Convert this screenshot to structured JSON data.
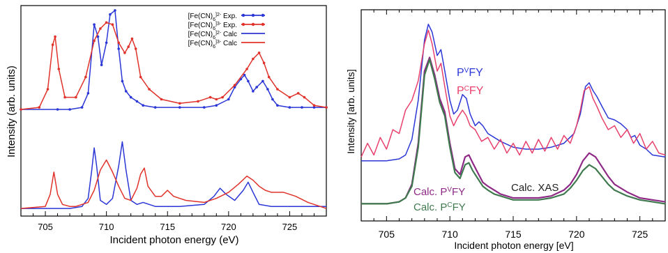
{
  "colors": {
    "blue": "#2a36d6",
    "red": "#e0322a",
    "magenta": "#e8406c",
    "purple": "#8e2a86",
    "green": "#3f7a4f",
    "dark": "#222222"
  },
  "chart_data": [
    {
      "type": "line",
      "title": "",
      "xlabel": "Incident photon energy (eV)",
      "ylabel": "Intensity (arb. units)",
      "xlim": [
        703,
        728
      ],
      "ylim": [
        0,
        1
      ],
      "xticks": [
        705,
        710,
        715,
        720,
        725
      ],
      "xtick_labels": [
        "705",
        "710",
        "715",
        "720",
        "725"
      ],
      "grid": false,
      "legend_position": "top-right",
      "legend": [
        {
          "base": "[Fe(CN)",
          "sub": "6",
          "sup": "]2-",
          "suffix": " Exp.",
          "color": "blue",
          "markers": true
        },
        {
          "base": "[Fe(CN)",
          "sub": "6",
          "sup": "]3-",
          "suffix": " Exp.",
          "color": "red",
          "markers": true
        },
        {
          "base": "[Fe(CN)",
          "sub": "6",
          "sup": "]2-",
          "suffix": " Calc",
          "color": "blue",
          "markers": false
        },
        {
          "base": "[Fe(CN)",
          "sub": "6",
          "sup": "]3-",
          "suffix": " Calc",
          "color": "red",
          "markers": false
        }
      ],
      "series": [
        {
          "name": "[Fe(CN)6]2- Exp.",
          "color": "blue",
          "markers": true,
          "x": [
            703,
            706,
            707,
            708,
            708.5,
            709,
            709.3,
            709.6,
            710,
            710.3,
            710.7,
            711,
            711.3,
            711.6,
            712,
            712.5,
            713,
            714,
            716,
            718,
            719,
            720,
            720.5,
            721,
            721.3,
            721.6,
            722,
            722.3,
            722.8,
            723.2,
            723.6,
            724,
            725,
            726,
            727,
            728
          ],
          "y": [
            0.5,
            0.5,
            0.5,
            0.51,
            0.58,
            0.92,
            0.86,
            0.72,
            0.83,
            0.97,
            0.99,
            0.8,
            0.64,
            0.59,
            0.56,
            0.54,
            0.52,
            0.51,
            0.51,
            0.51,
            0.52,
            0.55,
            0.61,
            0.65,
            0.67,
            0.64,
            0.59,
            0.61,
            0.64,
            0.6,
            0.55,
            0.52,
            0.51,
            0.51,
            0.51,
            0.51
          ]
        },
        {
          "name": "[Fe(CN)6]3- Exp.",
          "color": "red",
          "markers": true,
          "x": [
            703,
            704.5,
            705.2,
            705.6,
            705.8,
            706.1,
            706.6,
            707.5,
            708.3,
            709,
            709.5,
            710,
            710.5,
            711,
            711.5,
            711.8,
            712.1,
            712.4,
            712.8,
            713.5,
            714.5,
            716,
            717.5,
            718.5,
            719,
            719.5,
            720.5,
            721.5,
            722,
            722.5,
            722.9,
            723.3,
            724,
            725,
            725.7,
            726.2,
            727,
            728
          ],
          "y": [
            0.5,
            0.51,
            0.6,
            0.82,
            0.86,
            0.7,
            0.56,
            0.56,
            0.66,
            0.84,
            0.9,
            0.93,
            0.92,
            0.83,
            0.78,
            0.81,
            0.85,
            0.8,
            0.66,
            0.6,
            0.55,
            0.53,
            0.54,
            0.56,
            0.55,
            0.56,
            0.62,
            0.7,
            0.75,
            0.78,
            0.73,
            0.66,
            0.6,
            0.56,
            0.58,
            0.56,
            0.52,
            0.51
          ]
        },
        {
          "name": "[Fe(CN)6]2- Calc",
          "color": "blue",
          "markers": false,
          "x": [
            703,
            707,
            708,
            708.5,
            708.8,
            709,
            709.2,
            709.5,
            710,
            710.5,
            711,
            711.3,
            711.6,
            712,
            712.5,
            713,
            713.5,
            714,
            716,
            718,
            718.8,
            719.3,
            719.8,
            720.5,
            721.2,
            721.6,
            722,
            722.5,
            723.5,
            725,
            726,
            728
          ],
          "y": [
            0.01,
            0.01,
            0.02,
            0.06,
            0.2,
            0.31,
            0.22,
            0.05,
            0.03,
            0.06,
            0.22,
            0.34,
            0.2,
            0.05,
            0.03,
            0.04,
            0.03,
            0.02,
            0.02,
            0.03,
            0.07,
            0.11,
            0.08,
            0.05,
            0.1,
            0.14,
            0.09,
            0.03,
            0.02,
            0.02,
            0.02,
            0.02
          ]
        },
        {
          "name": "[Fe(CN)6]3- Calc",
          "color": "red",
          "markers": false,
          "x": [
            703,
            705,
            705.4,
            705.7,
            706,
            706.4,
            707,
            707.5,
            708.5,
            709,
            709.5,
            710,
            710.5,
            711,
            711.5,
            712,
            712.5,
            712.8,
            713.1,
            713.4,
            714,
            714.5,
            715,
            715.5,
            716.5,
            718,
            719,
            720,
            720.8,
            721.5,
            722,
            722.5,
            723,
            723.5,
            724.5,
            725.5,
            726.5,
            728
          ],
          "y": [
            0.01,
            0.02,
            0.08,
            0.19,
            0.08,
            0.03,
            0.02,
            0.02,
            0.04,
            0.1,
            0.2,
            0.25,
            0.19,
            0.12,
            0.06,
            0.05,
            0.11,
            0.18,
            0.21,
            0.12,
            0.07,
            0.07,
            0.1,
            0.07,
            0.05,
            0.04,
            0.06,
            0.09,
            0.13,
            0.17,
            0.15,
            0.12,
            0.1,
            0.09,
            0.09,
            0.07,
            0.04,
            0.01
          ]
        }
      ]
    },
    {
      "type": "line",
      "title": "",
      "xlabel": "Incident photon energy [eV]",
      "ylabel": "Intensity [arb. units]",
      "xlim": [
        703,
        727
      ],
      "ylim": [
        0,
        1
      ],
      "xticks": [
        705,
        710,
        715,
        720,
        725
      ],
      "xtick_labels": [
        "705",
        "710",
        "715",
        "720",
        "725"
      ],
      "grid": false,
      "annotations": [
        {
          "prefix": "P",
          "sup": "V",
          "suffix": "FY",
          "color": "blue"
        },
        {
          "prefix": "P",
          "sup": "C",
          "suffix": "FY",
          "color": "magenta"
        },
        {
          "prefix": "Calc. P",
          "sup": "V",
          "suffix": "FY",
          "color": "purple"
        },
        {
          "prefix": "Calc. P",
          "sup": "C",
          "suffix": "FY",
          "color": "green"
        },
        {
          "prefix": "Calc. XAS",
          "sup": "",
          "suffix": "",
          "color": "dark"
        }
      ],
      "series": [
        {
          "name": "PVFY",
          "color": "blue",
          "x": [
            703,
            704,
            705,
            706,
            706.5,
            707,
            707.5,
            708,
            708.3,
            708.6,
            709,
            709.3,
            709.6,
            710,
            710.3,
            710.6,
            711,
            711.3,
            711.6,
            712,
            712.3,
            712.6,
            713,
            714,
            715,
            716,
            717,
            718,
            719,
            719.8,
            720.3,
            720.7,
            721,
            721.3,
            721.6,
            722,
            722.5,
            723,
            723.5,
            724,
            724.3,
            724.6,
            725,
            725.5,
            726,
            727
          ],
          "y": [
            0.24,
            0.24,
            0.24,
            0.25,
            0.27,
            0.35,
            0.55,
            0.86,
            0.94,
            0.9,
            0.78,
            0.81,
            0.7,
            0.55,
            0.48,
            0.5,
            0.58,
            0.56,
            0.48,
            0.42,
            0.44,
            0.42,
            0.38,
            0.34,
            0.31,
            0.3,
            0.3,
            0.31,
            0.33,
            0.38,
            0.48,
            0.62,
            0.64,
            0.6,
            0.57,
            0.52,
            0.46,
            0.45,
            0.43,
            0.4,
            0.36,
            0.37,
            0.32,
            0.3,
            0.27,
            0.26
          ]
        },
        {
          "name": "PCFY",
          "color": "magenta",
          "x": [
            703,
            703.5,
            704,
            704.5,
            705,
            705.5,
            706,
            706.5,
            707,
            707.5,
            708,
            708.3,
            708.6,
            709,
            709.3,
            709.6,
            710,
            710.3,
            710.6,
            711,
            711.3,
            711.6,
            712,
            712.5,
            713,
            713.5,
            714,
            714.5,
            715,
            715.5,
            716,
            716.5,
            717,
            717.5,
            718,
            718.5,
            719,
            719.5,
            720,
            720.3,
            720.6,
            721,
            721.3,
            721.6,
            722,
            722.5,
            723,
            723.5,
            724,
            724.5,
            725,
            725.5,
            726,
            726.5,
            727
          ],
          "y": [
            0.26,
            0.33,
            0.27,
            0.36,
            0.3,
            0.4,
            0.38,
            0.5,
            0.55,
            0.65,
            0.84,
            0.91,
            0.84,
            0.7,
            0.74,
            0.62,
            0.47,
            0.42,
            0.46,
            0.5,
            0.47,
            0.42,
            0.4,
            0.34,
            0.36,
            0.3,
            0.35,
            0.28,
            0.33,
            0.27,
            0.34,
            0.28,
            0.35,
            0.29,
            0.36,
            0.3,
            0.37,
            0.33,
            0.42,
            0.5,
            0.6,
            0.62,
            0.56,
            0.52,
            0.46,
            0.4,
            0.42,
            0.36,
            0.4,
            0.33,
            0.38,
            0.3,
            0.34,
            0.28,
            0.27
          ]
        },
        {
          "name": "Calc. PVFY",
          "color": "purple",
          "x": [
            703,
            704,
            705,
            706,
            706.5,
            707,
            707.5,
            708,
            708.4,
            708.8,
            709.2,
            709.6,
            710,
            710.4,
            710.8,
            711.2,
            711.5,
            711.8,
            712.2,
            712.6,
            713,
            713.5,
            714,
            715,
            716,
            717,
            718,
            719,
            719.5,
            720,
            720.5,
            721,
            721.5,
            722,
            722.5,
            723,
            724,
            725,
            726,
            727
          ],
          "y": [
            0.02,
            0.02,
            0.02,
            0.03,
            0.05,
            0.12,
            0.33,
            0.7,
            0.77,
            0.68,
            0.56,
            0.49,
            0.33,
            0.2,
            0.17,
            0.26,
            0.27,
            0.23,
            0.18,
            0.13,
            0.11,
            0.09,
            0.07,
            0.05,
            0.05,
            0.05,
            0.06,
            0.09,
            0.12,
            0.17,
            0.24,
            0.28,
            0.26,
            0.21,
            0.16,
            0.12,
            0.08,
            0.05,
            0.04,
            0.03
          ]
        },
        {
          "name": "Calc. PCFY",
          "color": "green",
          "x": [
            703,
            704,
            705,
            706,
            706.5,
            707,
            707.5,
            708,
            708.4,
            708.8,
            709.2,
            709.6,
            710,
            710.4,
            710.8,
            711.2,
            711.5,
            711.8,
            712.2,
            712.6,
            713,
            713.5,
            714,
            715,
            716,
            717,
            718,
            719,
            719.5,
            720,
            720.5,
            721,
            721.5,
            722,
            722.5,
            723,
            724,
            725,
            726,
            727
          ],
          "y": [
            0.02,
            0.02,
            0.02,
            0.03,
            0.05,
            0.11,
            0.31,
            0.68,
            0.76,
            0.66,
            0.54,
            0.47,
            0.31,
            0.18,
            0.15,
            0.22,
            0.23,
            0.19,
            0.15,
            0.11,
            0.09,
            0.07,
            0.06,
            0.04,
            0.04,
            0.04,
            0.05,
            0.07,
            0.1,
            0.14,
            0.19,
            0.22,
            0.2,
            0.16,
            0.12,
            0.09,
            0.06,
            0.04,
            0.03,
            0.02
          ]
        }
      ]
    }
  ]
}
